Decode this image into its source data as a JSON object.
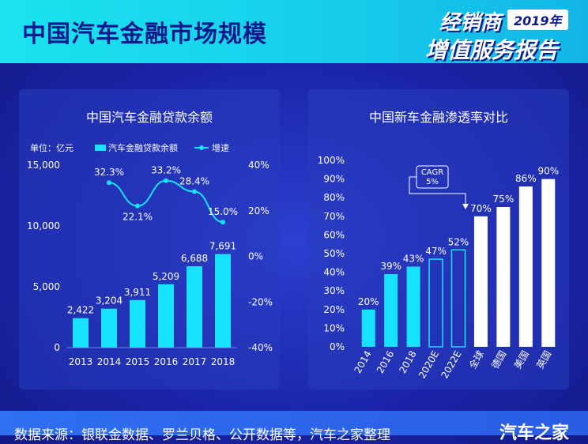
{
  "header": {
    "title": "中国汽车金融市场规模",
    "report_line1": "经销商",
    "report_year": "2019年",
    "report_line2": "增值服务报告"
  },
  "chart_data": [
    {
      "type": "bar",
      "title": "中国汽车金融贷款余额",
      "unit_label": "单位：亿元",
      "categories": [
        "2013",
        "2014",
        "2015",
        "2016",
        "2017",
        "2018"
      ],
      "series": [
        {
          "name": "汽车金融贷款余额",
          "axis": "left",
          "type": "bar",
          "values": [
            2422,
            3204,
            3911,
            5209,
            6688,
            7691
          ],
          "labels": [
            "2,422",
            "3,204",
            "3,911",
            "5,209",
            "6,688",
            "7,691"
          ]
        },
        {
          "name": "增速",
          "axis": "right",
          "type": "line",
          "values": [
            null,
            32.3,
            22.1,
            33.2,
            28.4,
            15.0
          ],
          "labels": [
            "",
            "32.3%",
            "22.1%",
            "33.2%",
            "28.4%",
            "15.0%"
          ]
        }
      ],
      "ylim": [
        0,
        15000
      ],
      "yticks": [
        "0",
        "5,000",
        "10,000",
        "15,000"
      ],
      "y2lim": [
        -40,
        40
      ],
      "y2ticks": [
        "-40%",
        "-20%",
        "0%",
        "20%",
        "40%"
      ],
      "legend": "top",
      "grid": false
    },
    {
      "type": "bar",
      "title": "中国新车金融渗透率对比",
      "categories": [
        "2014",
        "2016",
        "2018",
        "2020E",
        "2022E",
        "全球",
        "德国",
        "美国",
        "英国"
      ],
      "values": [
        20,
        39,
        43,
        47,
        52,
        70,
        75,
        86,
        90
      ],
      "labels": [
        "20%",
        "39%",
        "43%",
        "47%",
        "52%",
        "70%",
        "75%",
        "86%",
        "90%"
      ],
      "bar_styles": [
        "solid",
        "solid",
        "solid",
        "outline",
        "outline",
        "white",
        "white",
        "white",
        "white"
      ],
      "ylim": [
        0,
        100
      ],
      "yticks": [
        "0%",
        "10%",
        "20%",
        "30%",
        "40%",
        "50%",
        "60%",
        "70%",
        "80%",
        "90%",
        "100%"
      ],
      "annotation": {
        "line1": "CAGR",
        "line2": "5%"
      },
      "grid": false
    }
  ],
  "footer": {
    "source": "数据来源：银联金数据、罗兰贝格、公开数据等，汽车之家整理",
    "logo": "汽车之家"
  },
  "colors": {
    "cyan": "#18e3ff",
    "bar_outline": "#18e3ff",
    "white_bar": "#ffffff",
    "title_dark": "#0b1a8a"
  }
}
